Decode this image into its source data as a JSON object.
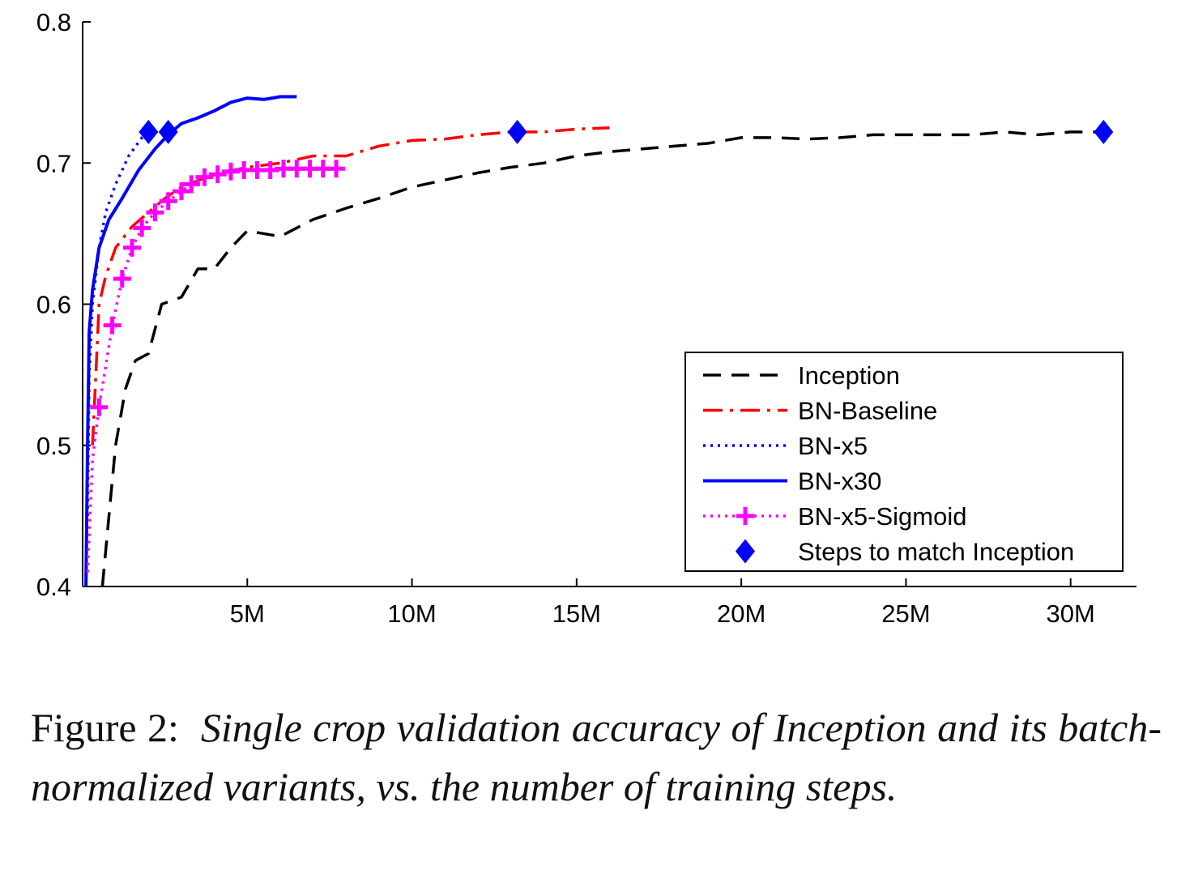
{
  "caption": {
    "label": "Figure 2:",
    "text": "Single crop validation accuracy of Inception and its batch-normalized variants, vs.  the number of training steps."
  },
  "chart_data": {
    "type": "line",
    "title": "",
    "xlabel": "",
    "ylabel": "",
    "xlim": [
      0,
      32000000
    ],
    "ylim": [
      0.4,
      0.8
    ],
    "x_ticks": [
      5000000,
      10000000,
      15000000,
      20000000,
      25000000,
      30000000
    ],
    "x_tick_labels": [
      "5M",
      "10M",
      "15M",
      "20M",
      "25M",
      "30M"
    ],
    "y_ticks": [
      0.4,
      0.5,
      0.6,
      0.7,
      0.8
    ],
    "y_tick_labels": [
      "0.4",
      "0.5",
      "0.6",
      "0.7",
      "0.8"
    ],
    "grid": false,
    "legend_position": "bottom-right",
    "series": [
      {
        "name": "Inception",
        "style": "dashed",
        "color": "#000000",
        "points": [
          [
            600000,
            0.4
          ],
          [
            800000,
            0.45
          ],
          [
            1000000,
            0.5
          ],
          [
            1300000,
            0.54
          ],
          [
            1600000,
            0.56
          ],
          [
            2000000,
            0.565
          ],
          [
            2400000,
            0.6
          ],
          [
            3000000,
            0.605
          ],
          [
            3500000,
            0.625
          ],
          [
            4000000,
            0.625
          ],
          [
            4500000,
            0.64
          ],
          [
            5000000,
            0.652
          ],
          [
            6000000,
            0.648
          ],
          [
            7000000,
            0.66
          ],
          [
            8000000,
            0.668
          ],
          [
            9000000,
            0.675
          ],
          [
            10000000,
            0.683
          ],
          [
            11000000,
            0.688
          ],
          [
            12000000,
            0.693
          ],
          [
            13000000,
            0.697
          ],
          [
            14000000,
            0.7
          ],
          [
            15000000,
            0.705
          ],
          [
            16000000,
            0.708
          ],
          [
            17000000,
            0.71
          ],
          [
            18000000,
            0.712
          ],
          [
            19000000,
            0.714
          ],
          [
            20000000,
            0.718
          ],
          [
            21000000,
            0.718
          ],
          [
            22000000,
            0.717
          ],
          [
            23000000,
            0.718
          ],
          [
            24000000,
            0.72
          ],
          [
            25000000,
            0.72
          ],
          [
            26000000,
            0.72
          ],
          [
            27000000,
            0.72
          ],
          [
            28000000,
            0.722
          ],
          [
            29000000,
            0.72
          ],
          [
            30000000,
            0.722
          ],
          [
            31000000,
            0.722
          ]
        ]
      },
      {
        "name": "BN-Baseline",
        "style": "dashdot",
        "color": "#ff0000",
        "points": [
          [
            300000,
            0.5
          ],
          [
            400000,
            0.55
          ],
          [
            500000,
            0.6
          ],
          [
            700000,
            0.62
          ],
          [
            1000000,
            0.64
          ],
          [
            1500000,
            0.655
          ],
          [
            2000000,
            0.665
          ],
          [
            2500000,
            0.675
          ],
          [
            3000000,
            0.683
          ],
          [
            4000000,
            0.692
          ],
          [
            5000000,
            0.697
          ],
          [
            6000000,
            0.7
          ],
          [
            7000000,
            0.705
          ],
          [
            8000000,
            0.705
          ],
          [
            9000000,
            0.712
          ],
          [
            10000000,
            0.716
          ],
          [
            11000000,
            0.717
          ],
          [
            12000000,
            0.72
          ],
          [
            13000000,
            0.722
          ],
          [
            14000000,
            0.722
          ],
          [
            15000000,
            0.724
          ],
          [
            16000000,
            0.725
          ]
        ]
      },
      {
        "name": "BN-x5",
        "style": "dotted",
        "color": "#0000ff",
        "points": [
          [
            150000,
            0.45
          ],
          [
            200000,
            0.55
          ],
          [
            300000,
            0.6
          ],
          [
            500000,
            0.64
          ],
          [
            700000,
            0.665
          ],
          [
            1000000,
            0.685
          ],
          [
            1400000,
            0.705
          ],
          [
            1800000,
            0.718
          ],
          [
            2000000,
            0.722
          ]
        ]
      },
      {
        "name": "BN-x30",
        "style": "solid",
        "color": "#0000ff",
        "points": [
          [
            100000,
            0.4
          ],
          [
            150000,
            0.5
          ],
          [
            200000,
            0.58
          ],
          [
            300000,
            0.61
          ],
          [
            500000,
            0.64
          ],
          [
            800000,
            0.66
          ],
          [
            1200000,
            0.675
          ],
          [
            1700000,
            0.695
          ],
          [
            2200000,
            0.71
          ],
          [
            2600000,
            0.72
          ],
          [
            3000000,
            0.728
          ],
          [
            3500000,
            0.732
          ],
          [
            4000000,
            0.737
          ],
          [
            4500000,
            0.743
          ],
          [
            5000000,
            0.746
          ],
          [
            5500000,
            0.745
          ],
          [
            6000000,
            0.747
          ],
          [
            6500000,
            0.747
          ]
        ]
      },
      {
        "name": "BN-x5-Sigmoid",
        "style": "dotted-markers",
        "color": "#ff00ff",
        "points": [
          [
            150000,
            0.41
          ],
          [
            300000,
            0.49
          ],
          [
            500000,
            0.527
          ],
          [
            900000,
            0.585
          ],
          [
            1200000,
            0.618
          ],
          [
            1500000,
            0.64
          ],
          [
            1800000,
            0.654
          ],
          [
            2200000,
            0.665
          ],
          [
            2600000,
            0.673
          ],
          [
            3000000,
            0.68
          ],
          [
            3300000,
            0.685
          ],
          [
            3700000,
            0.69
          ],
          [
            4100000,
            0.692
          ],
          [
            4500000,
            0.694
          ],
          [
            4900000,
            0.695
          ],
          [
            5300000,
            0.695
          ],
          [
            5700000,
            0.695
          ],
          [
            6100000,
            0.696
          ],
          [
            6500000,
            0.696
          ],
          [
            6900000,
            0.696
          ],
          [
            7300000,
            0.696
          ],
          [
            7700000,
            0.696
          ]
        ]
      },
      {
        "name": "Steps to match Inception",
        "style": "markers",
        "color": "#0000ff",
        "points": [
          [
            2000000,
            0.722
          ],
          [
            2600000,
            0.722
          ],
          [
            13200000,
            0.722
          ],
          [
            31000000,
            0.722
          ]
        ]
      }
    ]
  }
}
